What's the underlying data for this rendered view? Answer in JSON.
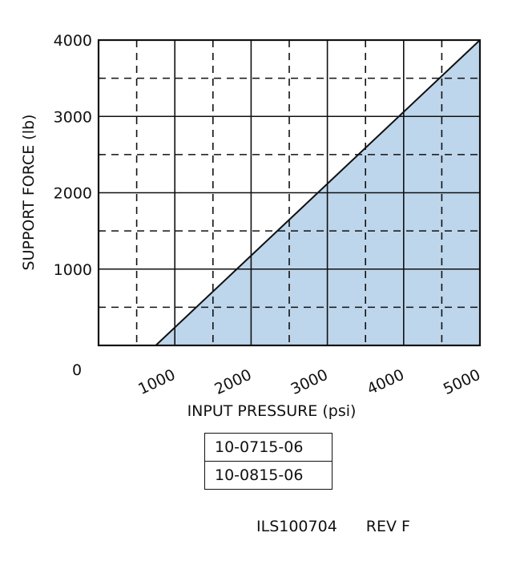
{
  "chart_data": {
    "type": "area",
    "xlabel": "INPUT PRESSURE (psi)",
    "ylabel": "SUPPORT FORCE (lb)",
    "xlim": [
      0,
      5000
    ],
    "ylim": [
      0,
      4000
    ],
    "x_ticks": [
      0,
      1000,
      2000,
      3000,
      4000,
      5000
    ],
    "x_tick_labels": [
      "0",
      "1000",
      "2000",
      "3000",
      "4000",
      "5000"
    ],
    "y_ticks": [
      1000,
      2000,
      3000,
      4000
    ],
    "y_tick_labels": [
      "1000",
      "2000",
      "3000",
      "4000"
    ],
    "grid": {
      "major": "solid",
      "minor": "dashed",
      "minor_x_step": 500,
      "minor_y_step": 500
    },
    "series": [
      {
        "x": [
          750,
          5000
        ],
        "y": [
          0,
          4000
        ]
      }
    ],
    "fill_region": "below line",
    "fill_color": "#bed6ec",
    "line_color": "#111111"
  },
  "part_numbers": [
    "10-0715-06",
    "10-0815-06"
  ],
  "footer": {
    "doc_id": "ILS100704",
    "revision": "REV F"
  }
}
